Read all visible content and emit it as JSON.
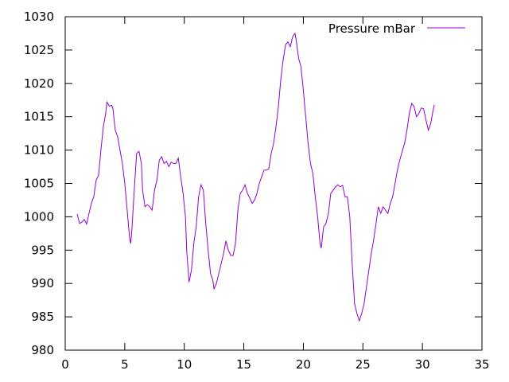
{
  "chart_data": {
    "type": "line",
    "title": "",
    "xlabel": "",
    "ylabel": "",
    "xlim": [
      0,
      35
    ],
    "ylim": [
      980,
      1030
    ],
    "xticks": [
      0,
      5,
      10,
      15,
      20,
      25,
      30,
      35
    ],
    "yticks": [
      980,
      985,
      990,
      995,
      1000,
      1005,
      1010,
      1015,
      1020,
      1025,
      1030
    ],
    "grid": false,
    "legend_position": "top-right",
    "series": [
      {
        "name": "Pressure mBar",
        "color": "#9400d3",
        "points": [
          [
            1.0,
            1000.4
          ],
          [
            1.2,
            999.0
          ],
          [
            1.4,
            999.2
          ],
          [
            1.6,
            999.6
          ],
          [
            1.8,
            998.9
          ],
          [
            2.0,
            1000.5
          ],
          [
            2.2,
            1002.0
          ],
          [
            2.4,
            1003.0
          ],
          [
            2.6,
            1005.5
          ],
          [
            2.8,
            1006.2
          ],
          [
            3.0,
            1010.0
          ],
          [
            3.2,
            1013.5
          ],
          [
            3.4,
            1015.5
          ],
          [
            3.5,
            1017.2
          ],
          [
            3.7,
            1016.6
          ],
          [
            3.9,
            1016.7
          ],
          [
            4.0,
            1016.3
          ],
          [
            4.2,
            1013.0
          ],
          [
            4.4,
            1012.0
          ],
          [
            4.6,
            1010.0
          ],
          [
            4.8,
            1008.0
          ],
          [
            5.0,
            1005.0
          ],
          [
            5.2,
            1001.0
          ],
          [
            5.4,
            997.0
          ],
          [
            5.5,
            996.0
          ],
          [
            5.6,
            998.0
          ],
          [
            5.8,
            1004.0
          ],
          [
            6.0,
            1009.5
          ],
          [
            6.2,
            1009.8
          ],
          [
            6.4,
            1008.0
          ],
          [
            6.5,
            1004.0
          ],
          [
            6.7,
            1001.5
          ],
          [
            6.9,
            1001.8
          ],
          [
            7.1,
            1001.5
          ],
          [
            7.3,
            1001.0
          ],
          [
            7.5,
            1004.0
          ],
          [
            7.7,
            1005.5
          ],
          [
            7.9,
            1008.5
          ],
          [
            8.1,
            1009.0
          ],
          [
            8.3,
            1008.0
          ],
          [
            8.5,
            1008.3
          ],
          [
            8.7,
            1007.5
          ],
          [
            8.9,
            1008.2
          ],
          [
            9.1,
            1008.0
          ],
          [
            9.3,
            1008.0
          ],
          [
            9.5,
            1008.8
          ],
          [
            9.7,
            1006.0
          ],
          [
            9.9,
            1003.5
          ],
          [
            10.1,
            1000.0
          ],
          [
            10.2,
            995.0
          ],
          [
            10.4,
            990.2
          ],
          [
            10.6,
            992.0
          ],
          [
            10.8,
            996.0
          ],
          [
            11.0,
            998.5
          ],
          [
            11.2,
            1003.0
          ],
          [
            11.4,
            1004.8
          ],
          [
            11.6,
            1004.0
          ],
          [
            11.8,
            999.0
          ],
          [
            12.0,
            995.0
          ],
          [
            12.2,
            991.5
          ],
          [
            12.4,
            990.5
          ],
          [
            12.5,
            989.2
          ],
          [
            12.7,
            990.0
          ],
          [
            12.9,
            991.5
          ],
          [
            13.1,
            993.0
          ],
          [
            13.3,
            994.5
          ],
          [
            13.5,
            996.4
          ],
          [
            13.7,
            995.0
          ],
          [
            13.9,
            994.2
          ],
          [
            14.1,
            994.2
          ],
          [
            14.3,
            996.0
          ],
          [
            14.5,
            1001.0
          ],
          [
            14.7,
            1003.5
          ],
          [
            14.9,
            1004.0
          ],
          [
            15.1,
            1004.8
          ],
          [
            15.3,
            1003.5
          ],
          [
            15.5,
            1002.8
          ],
          [
            15.7,
            1002.0
          ],
          [
            15.9,
            1002.5
          ],
          [
            16.1,
            1003.5
          ],
          [
            16.3,
            1005.0
          ],
          [
            16.5,
            1006.0
          ],
          [
            16.7,
            1007.0
          ],
          [
            16.9,
            1007.0
          ],
          [
            17.1,
            1007.2
          ],
          [
            17.3,
            1009.5
          ],
          [
            17.5,
            1011.0
          ],
          [
            17.7,
            1013.5
          ],
          [
            17.9,
            1016.5
          ],
          [
            18.1,
            1020.5
          ],
          [
            18.3,
            1023.5
          ],
          [
            18.5,
            1025.8
          ],
          [
            18.7,
            1026.2
          ],
          [
            18.9,
            1025.5
          ],
          [
            19.1,
            1027.0
          ],
          [
            19.3,
            1027.5
          ],
          [
            19.4,
            1026.5
          ],
          [
            19.6,
            1023.8
          ],
          [
            19.8,
            1022.5
          ],
          [
            20.0,
            1019.0
          ],
          [
            20.2,
            1015.0
          ],
          [
            20.4,
            1011.0
          ],
          [
            20.6,
            1008.0
          ],
          [
            20.8,
            1006.5
          ],
          [
            21.0,
            1003.0
          ],
          [
            21.2,
            1000.0
          ],
          [
            21.4,
            996.0
          ],
          [
            21.5,
            995.3
          ],
          [
            21.7,
            998.5
          ],
          [
            21.9,
            999.0
          ],
          [
            22.1,
            1000.5
          ],
          [
            22.3,
            1003.5
          ],
          [
            22.5,
            1004.0
          ],
          [
            22.7,
            1004.5
          ],
          [
            22.9,
            1004.8
          ],
          [
            23.1,
            1004.5
          ],
          [
            23.3,
            1004.7
          ],
          [
            23.5,
            1003.0
          ],
          [
            23.7,
            1003.0
          ],
          [
            23.9,
            1000.0
          ],
          [
            24.1,
            993.0
          ],
          [
            24.3,
            987.0
          ],
          [
            24.5,
            985.5
          ],
          [
            24.7,
            984.4
          ],
          [
            24.9,
            985.5
          ],
          [
            25.1,
            987.0
          ],
          [
            25.3,
            989.5
          ],
          [
            25.5,
            992.0
          ],
          [
            25.7,
            994.5
          ],
          [
            25.9,
            996.5
          ],
          [
            26.1,
            999.0
          ],
          [
            26.3,
            1001.5
          ],
          [
            26.5,
            1000.5
          ],
          [
            26.7,
            1001.5
          ],
          [
            26.9,
            1001.0
          ],
          [
            27.1,
            1000.5
          ],
          [
            27.3,
            1002.0
          ],
          [
            27.5,
            1003.0
          ],
          [
            27.7,
            1005.0
          ],
          [
            27.9,
            1007.0
          ],
          [
            28.1,
            1008.5
          ],
          [
            28.3,
            1009.8
          ],
          [
            28.5,
            1011.0
          ],
          [
            28.7,
            1013.0
          ],
          [
            28.9,
            1015.5
          ],
          [
            29.1,
            1017.0
          ],
          [
            29.3,
            1016.5
          ],
          [
            29.5,
            1015.0
          ],
          [
            29.7,
            1015.5
          ],
          [
            29.9,
            1016.3
          ],
          [
            30.1,
            1016.2
          ],
          [
            30.3,
            1014.5
          ],
          [
            30.5,
            1013.0
          ],
          [
            30.7,
            1014.0
          ],
          [
            30.9,
            1016.0
          ],
          [
            31.0,
            1016.8
          ]
        ]
      }
    ]
  }
}
